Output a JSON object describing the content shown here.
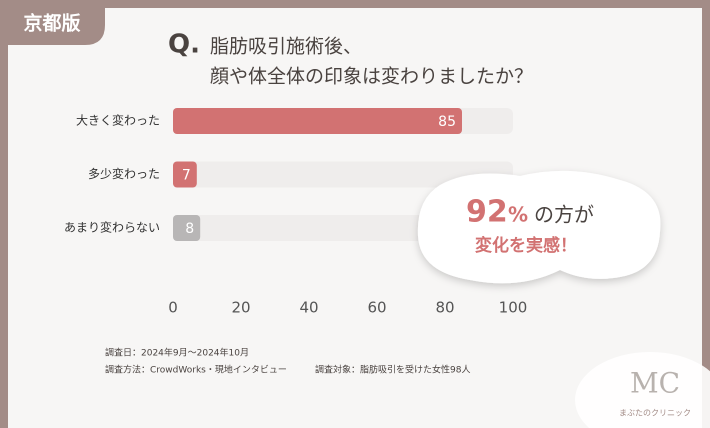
{
  "badge": "京都版",
  "chart_data": {
    "type": "bar",
    "orientation": "horizontal",
    "title_prefix": "Q.",
    "title_lines": [
      "脂肪吸引施術後、",
      "顔や体全体の印象は変わりましたか？"
    ],
    "categories": [
      "大きく変わった",
      "多少変わった",
      "あまり変わらない"
    ],
    "values": [
      85,
      7,
      8
    ],
    "colors": [
      "#d27272",
      "#d27272",
      "#b8b6b6"
    ],
    "xlim": [
      0,
      100
    ],
    "xticks": [
      0,
      20,
      40,
      60,
      80,
      100
    ],
    "grid": false,
    "annotation": {
      "number": "92",
      "unit": "%",
      "rest": "の方が",
      "line2": "変化を実感！"
    }
  },
  "footnotes": {
    "date": "調査日：2024年9月～2024年10月",
    "method": "調査方法：CrowdWorks・現地インタビュー",
    "target": "調査対象：脂肪吸引を受けた女性98人"
  },
  "logo": {
    "mark": "MC",
    "name": "まぶたのクリニック"
  }
}
